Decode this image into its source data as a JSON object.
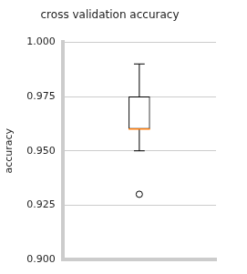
{
  "chart_data": {
    "type": "box",
    "title": "cross validation accuracy",
    "y_label": "accuracy",
    "categories": [
      null
    ],
    "values": [
      {
        "min": 0.95,
        "q1": 0.96,
        "median": 0.96,
        "q3": 0.975,
        "max": 0.99,
        "outliers": [
          0.93
        ]
      }
    ],
    "ylim": [
      0.9,
      1.0
    ],
    "yticks": [
      {
        "value": 0.9,
        "label": "0.900"
      },
      {
        "value": 0.925,
        "label": "0.925"
      },
      {
        "value": 0.95,
        "label": "0.950"
      },
      {
        "value": 0.975,
        "label": "0.975"
      },
      {
        "value": 1.0,
        "label": "1.000"
      }
    ],
    "tick_labels": "y",
    "grid": true
  }
}
